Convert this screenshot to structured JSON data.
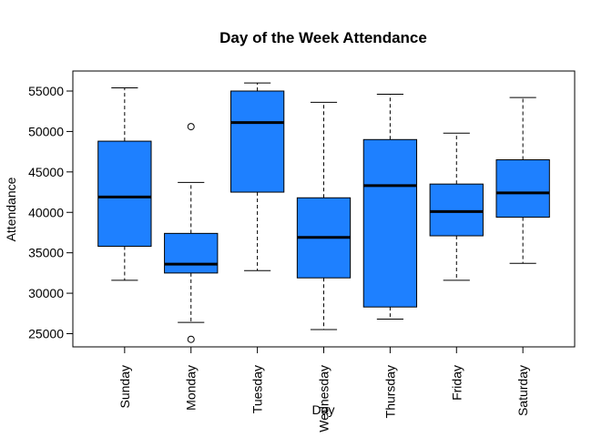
{
  "chart_data": {
    "type": "boxplot",
    "title": "Day of the Week Attendance",
    "xlabel": "Day",
    "ylabel": "Attendance",
    "ylim": [
      23000,
      57000
    ],
    "yticks": [
      25000,
      30000,
      35000,
      40000,
      45000,
      50000,
      55000
    ],
    "ytick_labels": [
      "25000",
      "30000",
      "35000",
      "40000",
      "45000",
      "50000",
      "55000"
    ],
    "box_color": "#1E80FF",
    "categories": [
      "Sunday",
      "Monday",
      "Tuesday",
      "Wednesday",
      "Thursday",
      "Friday",
      "Saturday"
    ],
    "boxes": [
      {
        "min": 31600,
        "q1": 35800,
        "median": 41900,
        "q3": 48800,
        "max": 55400,
        "outliers": []
      },
      {
        "min": 26400,
        "q1": 32500,
        "median": 33600,
        "q3": 37400,
        "max": 43700,
        "outliers": [
          50600,
          24300
        ]
      },
      {
        "min": 32800,
        "q1": 42500,
        "median": 51100,
        "q3": 55000,
        "max": 56000,
        "outliers": []
      },
      {
        "min": 25500,
        "q1": 31900,
        "median": 36900,
        "q3": 41800,
        "max": 53600,
        "outliers": []
      },
      {
        "min": 26800,
        "q1": 28300,
        "median": 43300,
        "q3": 49000,
        "max": 54600,
        "outliers": []
      },
      {
        "min": 31600,
        "q1": 37100,
        "median": 40100,
        "q3": 43500,
        "max": 49800,
        "outliers": []
      },
      {
        "min": 33700,
        "q1": 39400,
        "median": 42400,
        "q3": 46500,
        "max": 54200,
        "outliers": []
      }
    ]
  }
}
